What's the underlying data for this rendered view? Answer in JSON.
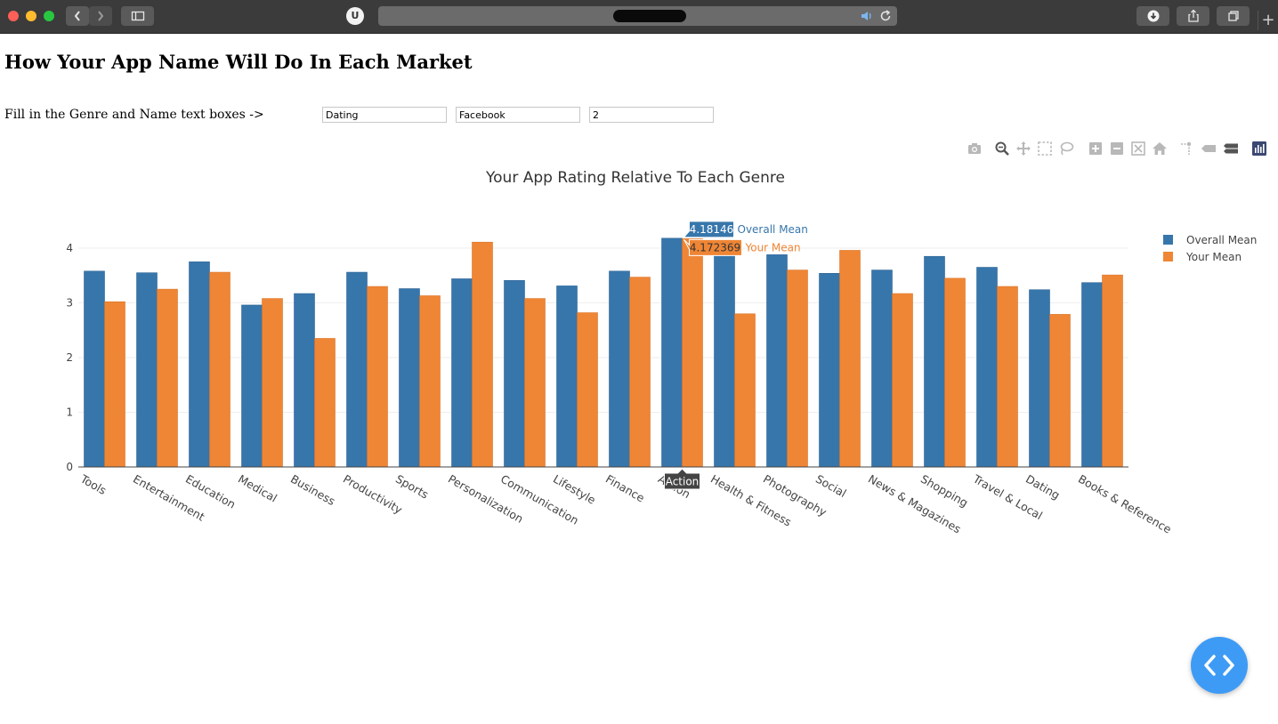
{
  "browser": {
    "ublock_badge": "U",
    "new_tab": "+"
  },
  "page": {
    "title": "How Your App Name Will Do In Each Market",
    "instruction": "Fill in the Genre and Name text boxes ->",
    "inputs": [
      {
        "value": "Dating"
      },
      {
        "value": "Facebook"
      },
      {
        "value": "2"
      }
    ]
  },
  "modebar_icons": [
    "camera-icon",
    "zoom-icon",
    "pan-icon",
    "box-select-icon",
    "lasso-icon",
    "zoom-in-icon",
    "zoom-out-icon",
    "autoscale-icon",
    "reset-axes-icon",
    "spike-lines-icon",
    "hover-closest-icon",
    "hover-compare-icon",
    "plotly-logo-icon"
  ],
  "colors": {
    "overall": "#3776ab",
    "yours": "#ef8635",
    "fab": "#3e9bf5"
  },
  "chart_data": {
    "type": "bar",
    "title": "Your App Rating Relative To Each Genre",
    "categories": [
      "Tools",
      "Entertainment",
      "Education",
      "Medical",
      "Business",
      "Productivity",
      "Sports",
      "Personalization",
      "Communication",
      "Lifestyle",
      "Finance",
      "Action",
      "Health & Fitness",
      "Photography",
      "Social",
      "News & Magazines",
      "Shopping",
      "Travel & Local",
      "Dating",
      "Books & Reference"
    ],
    "series": [
      {
        "name": "Overall Mean",
        "color": "#3776ab",
        "values": [
          3.58,
          3.55,
          3.75,
          2.96,
          3.17,
          3.56,
          3.26,
          3.44,
          3.41,
          3.31,
          3.58,
          4.18146,
          4.0,
          3.88,
          3.54,
          3.6,
          3.85,
          3.65,
          3.24,
          3.37
        ]
      },
      {
        "name": "Your Mean",
        "color": "#ef8635",
        "values": [
          3.02,
          3.25,
          3.56,
          3.08,
          2.35,
          3.3,
          3.13,
          4.11,
          3.08,
          2.82,
          3.47,
          4.172369,
          2.8,
          3.6,
          3.96,
          3.17,
          3.45,
          3.3,
          2.79,
          3.51
        ]
      }
    ],
    "y_ticks": [
      "0",
      "1",
      "2",
      "3",
      "4"
    ],
    "ylim": [
      0,
      4.6
    ],
    "legend_position": "top-right",
    "hover": {
      "category_index": 11,
      "overall_value": "4.18146",
      "overall_name": "Overall Mean",
      "your_value": "4.172369",
      "your_name": "Your Mean",
      "category_label": "Action"
    }
  }
}
